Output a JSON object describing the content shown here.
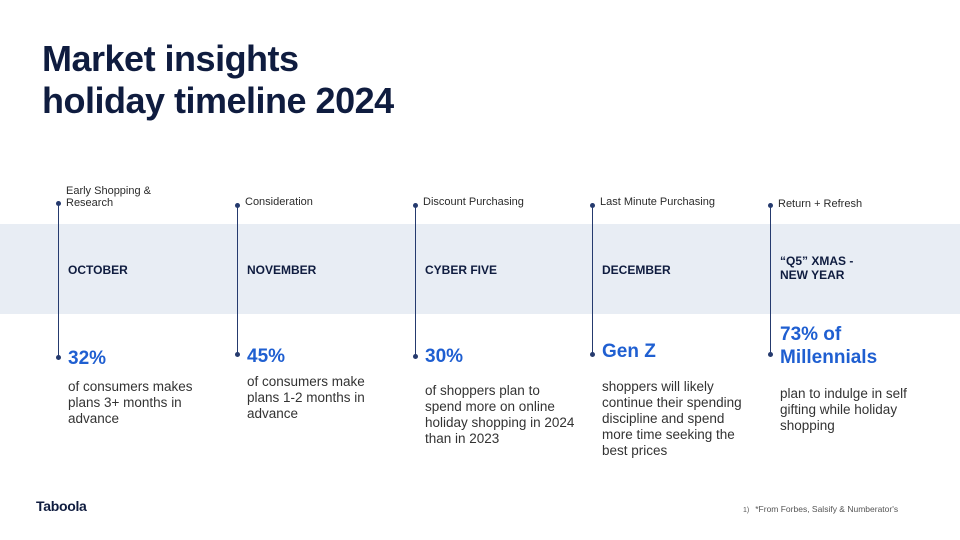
{
  "title": {
    "line1": "Market insights",
    "line2": "holiday timeline 2024"
  },
  "timeline": [
    {
      "phase": "Early Shopping & Research",
      "month": "OCTOBER",
      "stat": "32%",
      "description": "of consumers makes plans 3+ months in advance"
    },
    {
      "phase": "Consideration",
      "month": "NOVEMBER",
      "stat": "45%",
      "description": "of consumers make plans 1-2 months in advance"
    },
    {
      "phase": "Discount Purchasing",
      "month": "CYBER FIVE",
      "stat": "30%",
      "description": "of shoppers plan to spend more on online holiday shopping in 2024 than in 2023"
    },
    {
      "phase": "Last Minute Purchasing",
      "month": "DECEMBER",
      "stat": "Gen Z",
      "description": "shoppers will likely continue their spending discipline and spend more time seeking the best prices"
    },
    {
      "phase": "Return + Refresh",
      "month": "“Q5” XMAS - NEW YEAR",
      "stat": "73% of Millennials",
      "description": "plan to indulge in self gifting while holiday shopping"
    }
  ],
  "footer": {
    "logo": "Taboola",
    "footnote_number": "1)",
    "footnote": "*From Forbes, Salsify & Numberator's"
  },
  "colors": {
    "title": "#0f1c3f",
    "accent": "#1f5fd1",
    "band": "#e8edf4",
    "line": "#253a6e"
  }
}
